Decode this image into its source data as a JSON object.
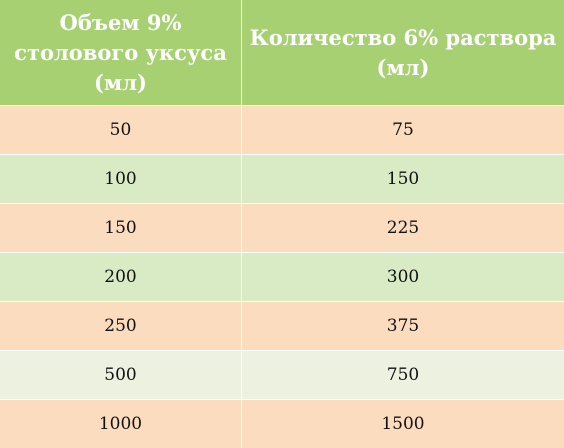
{
  "table": {
    "headers": [
      "Объем 9% столового уксуса (мл)",
      "Количество 6% раствора (мл)"
    ],
    "rows": [
      {
        "volume": "50",
        "amount": "75",
        "bg": "#fcdcbf"
      },
      {
        "volume": "100",
        "amount": "150",
        "bg": "#d8ebc4"
      },
      {
        "volume": "150",
        "amount": "225",
        "bg": "#fcdcbf"
      },
      {
        "volume": "200",
        "amount": "300",
        "bg": "#d8ebc4"
      },
      {
        "volume": "250",
        "amount": "375",
        "bg": "#fcdcbf"
      },
      {
        "volume": "500",
        "amount": "750",
        "bg": "#edf1e0"
      },
      {
        "volume": "1000",
        "amount": "1500",
        "bg": "#fcdcbf"
      }
    ]
  },
  "colors": {
    "header_bg": "#a7d072",
    "header_text": "#ffffff",
    "cell_text": "#111111"
  }
}
